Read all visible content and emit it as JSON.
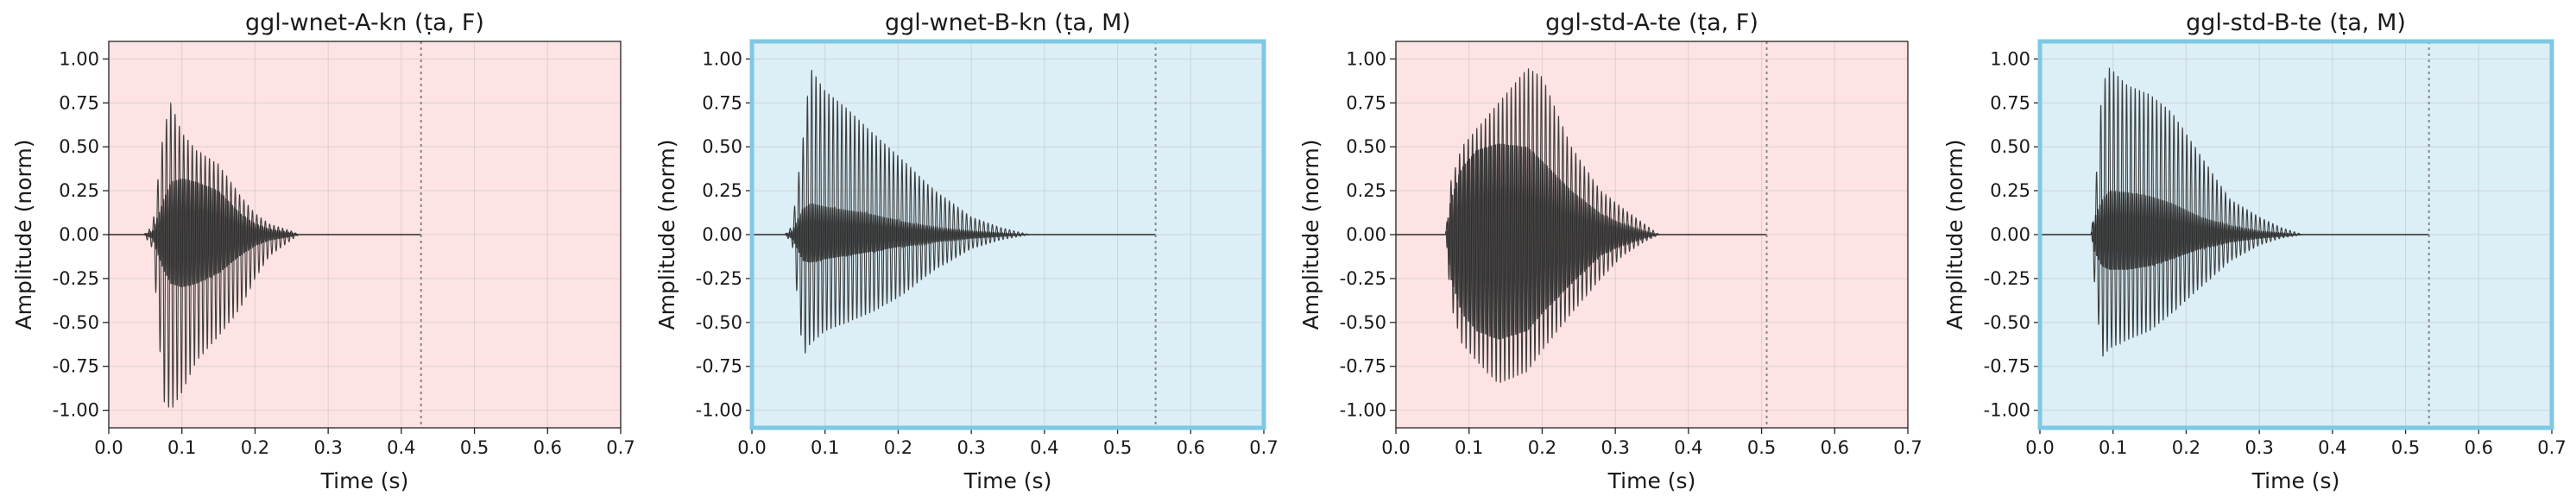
{
  "chart_data": [
    {
      "type": "line",
      "title": "ggl-wnet-A-kn (ṭa, F)",
      "xlabel": "Time (s)",
      "ylabel": "Amplitude (norm)",
      "xlim": [
        0,
        0.7
      ],
      "ylim": [
        -1.1,
        1.1
      ],
      "xticks": [
        "0.0",
        "0.1",
        "0.2",
        "0.3",
        "0.4",
        "0.5",
        "0.6",
        "0.7"
      ],
      "yticks": [
        "1.00",
        "0.75",
        "0.50",
        "0.25",
        "0.00",
        "-0.25",
        "-0.50",
        "-0.75",
        "-1.00"
      ],
      "grid": true,
      "background": "#fde3e3",
      "highlighted": false,
      "end_marker_time": 0.427,
      "signal_end": 0.427,
      "envelope": {
        "t": [
          0.048,
          0.06,
          0.075,
          0.085,
          0.1,
          0.12,
          0.15,
          0.18,
          0.2,
          0.22,
          0.25,
          0.26
        ],
        "pos": [
          0.0,
          0.05,
          0.6,
          0.75,
          0.58,
          0.48,
          0.4,
          0.22,
          0.12,
          0.06,
          0.02,
          0.0
        ],
        "neg": [
          0.0,
          -0.08,
          -0.95,
          -1.0,
          -0.9,
          -0.72,
          -0.58,
          -0.42,
          -0.25,
          -0.12,
          -0.03,
          0.0
        ],
        "core_pos": [
          0.0,
          0.02,
          0.2,
          0.3,
          0.32,
          0.3,
          0.25,
          0.12,
          0.06,
          0.03,
          0.01,
          0.0
        ],
        "core_neg": [
          0.0,
          -0.02,
          -0.2,
          -0.28,
          -0.3,
          -0.28,
          -0.22,
          -0.12,
          -0.06,
          -0.03,
          -0.01,
          0.0
        ]
      }
    },
    {
      "type": "line",
      "title": "ggl-wnet-B-kn (ṭa, M)",
      "xlabel": "Time (s)",
      "ylabel": "Amplitude (norm)",
      "xlim": [
        0,
        0.7
      ],
      "ylim": [
        -1.1,
        1.1
      ],
      "xticks": [
        "0.0",
        "0.1",
        "0.2",
        "0.3",
        "0.4",
        "0.5",
        "0.6",
        "0.7"
      ],
      "yticks": [
        "1.00",
        "0.75",
        "0.50",
        "0.25",
        "0.00",
        "-0.25",
        "-0.50",
        "-0.75",
        "-1.00"
      ],
      "grid": true,
      "background": "#dceef6",
      "highlighted": true,
      "border_color": "#7ec8e3",
      "end_marker_time": 0.552,
      "signal_end": 0.552,
      "envelope": {
        "t": [
          0.045,
          0.055,
          0.07,
          0.08,
          0.1,
          0.13,
          0.16,
          0.2,
          0.25,
          0.3,
          0.34,
          0.38
        ],
        "pos": [
          0.0,
          0.05,
          0.55,
          0.95,
          0.82,
          0.72,
          0.6,
          0.45,
          0.25,
          0.1,
          0.04,
          0.0
        ],
        "neg": [
          0.0,
          -0.05,
          -0.7,
          -0.62,
          -0.55,
          -0.5,
          -0.45,
          -0.36,
          -0.2,
          -0.08,
          -0.03,
          0.0
        ],
        "core_pos": [
          0.0,
          0.02,
          0.15,
          0.18,
          0.16,
          0.14,
          0.12,
          0.08,
          0.04,
          0.02,
          0.01,
          0.0
        ],
        "core_neg": [
          0.0,
          -0.02,
          -0.15,
          -0.16,
          -0.14,
          -0.12,
          -0.1,
          -0.07,
          -0.04,
          -0.02,
          -0.01,
          0.0
        ]
      }
    },
    {
      "type": "line",
      "title": "ggl-std-A-te (ṭa, F)",
      "xlabel": "Time (s)",
      "ylabel": "Amplitude (norm)",
      "xlim": [
        0,
        0.7
      ],
      "ylim": [
        -1.1,
        1.1
      ],
      "xticks": [
        "0.0",
        "0.1",
        "0.2",
        "0.3",
        "0.4",
        "0.5",
        "0.6",
        "0.7"
      ],
      "yticks": [
        "1.00",
        "0.75",
        "0.50",
        "0.25",
        "0.00",
        "-0.25",
        "-0.50",
        "-0.75",
        "-1.00"
      ],
      "grid": true,
      "background": "#fde3e3",
      "highlighted": false,
      "end_marker_time": 0.507,
      "signal_end": 0.507,
      "envelope": {
        "t": [
          0.068,
          0.075,
          0.09,
          0.11,
          0.14,
          0.18,
          0.2,
          0.24,
          0.28,
          0.31,
          0.34,
          0.36
        ],
        "pos": [
          0.0,
          0.3,
          0.5,
          0.6,
          0.75,
          0.95,
          0.9,
          0.5,
          0.25,
          0.15,
          0.06,
          0.0
        ],
        "neg": [
          0.0,
          -0.4,
          -0.62,
          -0.72,
          -0.85,
          -0.78,
          -0.66,
          -0.45,
          -0.25,
          -0.12,
          -0.04,
          0.0
        ],
        "core_pos": [
          0.0,
          0.2,
          0.38,
          0.48,
          0.52,
          0.5,
          0.42,
          0.25,
          0.12,
          0.06,
          0.02,
          0.0
        ],
        "core_neg": [
          0.0,
          -0.25,
          -0.45,
          -0.55,
          -0.6,
          -0.55,
          -0.45,
          -0.28,
          -0.12,
          -0.06,
          -0.02,
          0.0
        ]
      }
    },
    {
      "type": "line",
      "title": "ggl-std-B-te (ṭa, M)",
      "xlabel": "Time (s)",
      "ylabel": "Amplitude (norm)",
      "xlim": [
        0,
        0.7
      ],
      "ylim": [
        -1.1,
        1.1
      ],
      "xticks": [
        "0.0",
        "0.1",
        "0.2",
        "0.3",
        "0.4",
        "0.5",
        "0.6",
        "0.7"
      ],
      "yticks": [
        "1.00",
        "0.75",
        "0.50",
        "0.25",
        "0.00",
        "-0.25",
        "-0.50",
        "-0.75",
        "-1.00"
      ],
      "grid": true,
      "background": "#dceef6",
      "highlighted": true,
      "border_color": "#7ec8e3",
      "end_marker_time": 0.532,
      "signal_end": 0.532,
      "envelope": {
        "t": [
          0.07,
          0.075,
          0.085,
          0.095,
          0.12,
          0.15,
          0.18,
          0.22,
          0.26,
          0.3,
          0.33,
          0.36
        ],
        "pos": [
          0.0,
          0.2,
          0.85,
          0.95,
          0.85,
          0.8,
          0.7,
          0.45,
          0.2,
          0.1,
          0.04,
          0.0
        ],
        "neg": [
          0.0,
          -0.3,
          -0.7,
          -0.65,
          -0.6,
          -0.55,
          -0.45,
          -0.3,
          -0.15,
          -0.06,
          -0.02,
          0.0
        ],
        "core_pos": [
          0.0,
          0.1,
          0.2,
          0.25,
          0.24,
          0.22,
          0.18,
          0.1,
          0.05,
          0.02,
          0.01,
          0.0
        ],
        "core_neg": [
          0.0,
          -0.1,
          -0.18,
          -0.2,
          -0.2,
          -0.18,
          -0.14,
          -0.08,
          -0.04,
          -0.02,
          -0.01,
          0.0
        ]
      }
    }
  ]
}
